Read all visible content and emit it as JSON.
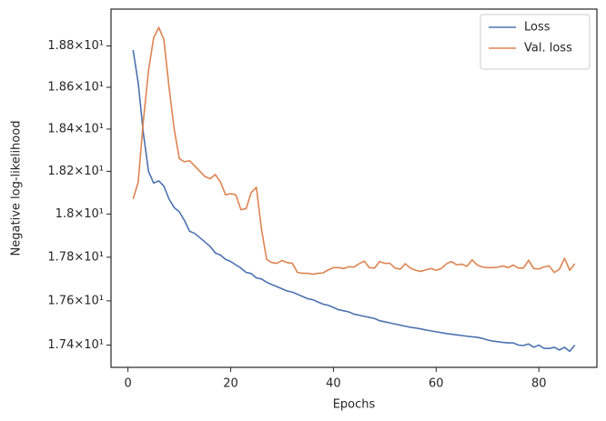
{
  "chart_data": {
    "type": "line",
    "xlabel": "Epochs",
    "ylabel": "Negative log-likelihood",
    "x": [
      1,
      2,
      3,
      4,
      5,
      6,
      7,
      8,
      9,
      10,
      11,
      12,
      13,
      14,
      15,
      16,
      17,
      18,
      19,
      20,
      21,
      22,
      23,
      24,
      25,
      26,
      27,
      28,
      29,
      30,
      31,
      32,
      33,
      34,
      35,
      36,
      37,
      38,
      39,
      40,
      41,
      42,
      43,
      44,
      45,
      46,
      47,
      48,
      49,
      50,
      51,
      52,
      53,
      54,
      55,
      56,
      57,
      58,
      59,
      60,
      61,
      62,
      63,
      64,
      65,
      66,
      67,
      68,
      69,
      70,
      71,
      72,
      73,
      74,
      75,
      76,
      77,
      78,
      79,
      80,
      81,
      82,
      83,
      84,
      85,
      86,
      87
    ],
    "series": [
      {
        "name": "Loss",
        "color": "#4c72b0",
        "values": [
          18.78,
          18.62,
          18.38,
          18.2,
          18.145,
          18.155,
          18.13,
          18.07,
          18.03,
          18.01,
          17.97,
          17.92,
          17.91,
          17.89,
          17.87,
          17.85,
          17.82,
          17.81,
          17.79,
          17.78,
          17.765,
          17.75,
          17.73,
          17.725,
          17.705,
          17.7,
          17.685,
          17.675,
          17.665,
          17.655,
          17.645,
          17.64,
          17.63,
          17.62,
          17.61,
          17.605,
          17.595,
          17.585,
          17.58,
          17.57,
          17.56,
          17.555,
          17.55,
          17.54,
          17.535,
          17.53,
          17.525,
          17.52,
          17.51,
          17.505,
          17.5,
          17.495,
          17.49,
          17.485,
          17.48,
          17.477,
          17.473,
          17.468,
          17.464,
          17.46,
          17.456,
          17.452,
          17.449,
          17.446,
          17.443,
          17.44,
          17.437,
          17.435,
          17.43,
          17.423,
          17.418,
          17.415,
          17.412,
          17.41,
          17.41,
          17.4,
          17.398,
          17.405,
          17.39,
          17.4,
          17.385,
          17.385,
          17.39,
          17.378,
          17.39,
          17.372,
          17.4
        ]
      },
      {
        "name": "Val. loss",
        "color": "#dd8452",
        "values": [
          18.07,
          18.15,
          18.44,
          18.68,
          18.84,
          18.89,
          18.83,
          18.6,
          18.4,
          18.26,
          18.245,
          18.25,
          18.225,
          18.2,
          18.175,
          18.165,
          18.185,
          18.15,
          18.09,
          18.095,
          18.09,
          18.02,
          18.025,
          18.1,
          18.125,
          17.93,
          17.79,
          17.775,
          17.772,
          17.785,
          17.775,
          17.772,
          17.73,
          17.726,
          17.726,
          17.722,
          17.726,
          17.728,
          17.742,
          17.752,
          17.752,
          17.748,
          17.756,
          17.755,
          17.77,
          17.782,
          17.752,
          17.75,
          17.78,
          17.772,
          17.772,
          17.75,
          17.745,
          17.77,
          17.75,
          17.74,
          17.735,
          17.742,
          17.748,
          17.74,
          17.748,
          17.77,
          17.78,
          17.765,
          17.768,
          17.758,
          17.788,
          17.764,
          17.755,
          17.752,
          17.752,
          17.754,
          17.76,
          17.752,
          17.764,
          17.75,
          17.75,
          17.786,
          17.748,
          17.746,
          17.755,
          17.76,
          17.73,
          17.745,
          17.795,
          17.74,
          17.77
        ]
      }
    ],
    "xlim": [
      -3.3,
      91.3
    ],
    "xticks": [
      0,
      20,
      40,
      60,
      80
    ],
    "ylim": [
      17.3,
      18.98
    ],
    "log_y": true,
    "yticks": [
      {
        "value": 17.4,
        "label": "1.74×10¹"
      },
      {
        "value": 17.6,
        "label": "1.76×10¹"
      },
      {
        "value": 17.8,
        "label": "1.78×10¹"
      },
      {
        "value": 18.0,
        "label": "1.8×10¹"
      },
      {
        "value": 18.2,
        "label": "1.82×10¹"
      },
      {
        "value": 18.4,
        "label": "1.84×10¹"
      },
      {
        "value": 18.6,
        "label": "1.86×10¹"
      },
      {
        "value": 18.8,
        "label": "1.88×10¹"
      }
    ],
    "grid": false,
    "legend": "upper right"
  }
}
